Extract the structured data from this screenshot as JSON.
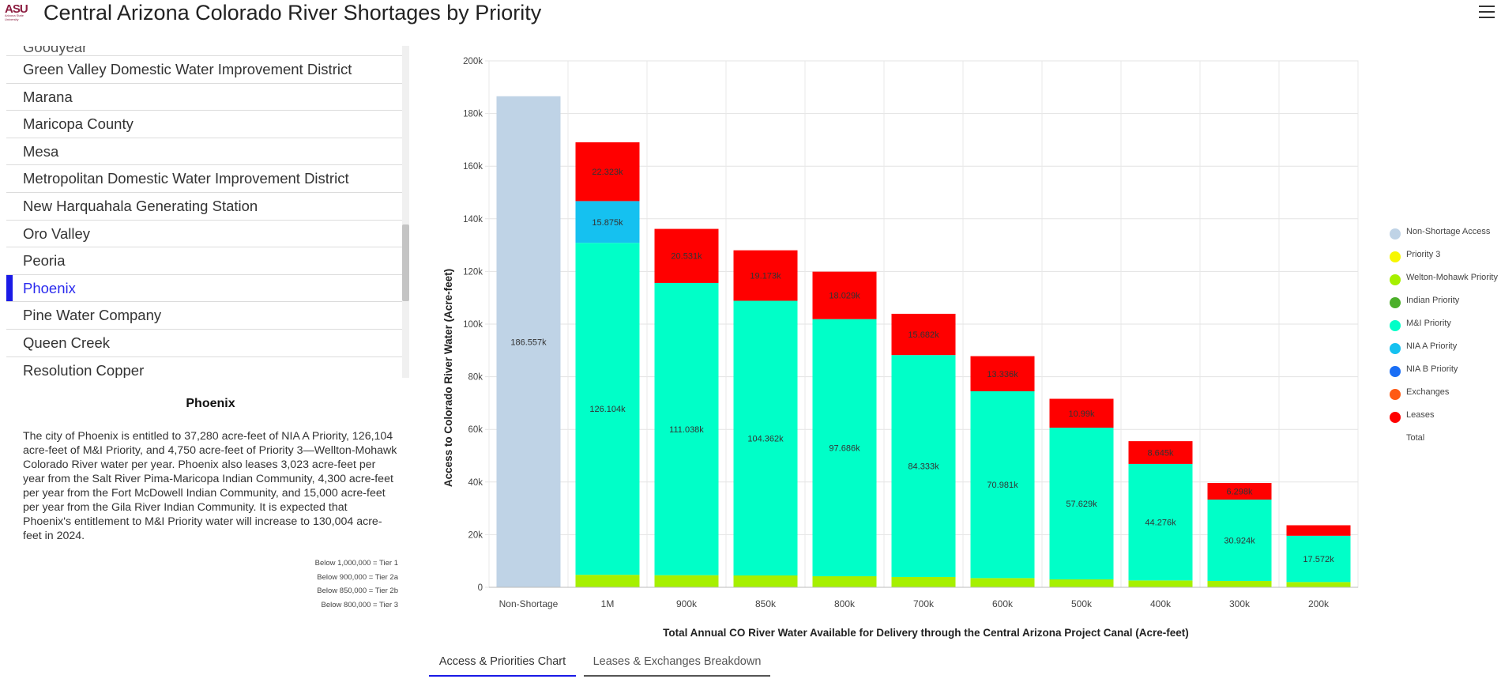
{
  "header": {
    "logo_text": "ASU",
    "logo_sub": "Arizona State University",
    "title": "Central Arizona Colorado River Shortages by Priority"
  },
  "list": {
    "partial_top": "Goodyear",
    "items": [
      "Green Valley Domestic Water Improvement District",
      "Marana",
      "Maricopa County",
      "Mesa",
      "Metropolitan Domestic Water Improvement District",
      "New Harquahala Generating Station",
      "Oro Valley",
      "Peoria",
      "Phoenix",
      "Pine Water Company",
      "Queen Creek",
      "Resolution Copper"
    ],
    "selected": "Phoenix"
  },
  "detail": {
    "title": "Phoenix",
    "text": "The city of Phoenix is entitled to 37,280 acre-feet of NIA A Priority, 126,104 acre-feet of M&I Priority, and 4,750 acre-feet of Priority 3—Wellton-Mohawk Colorado River water per year. Phoenix also leases 3,023 acre-feet per year from the Salt River Pima-Maricopa Indian Community, 4,300 acre-feet per year from the Fort McDowell Indian Community, and 15,000 acre-feet per year from the Gila River Indian Community. It is expected that Phoenix's entitlement to M&I Priority water will increase to 130,004 acre-feet in 2024.",
    "tiers": [
      "Below 1,000,000 = Tier 1",
      "Below 900,000 = Tier 2a",
      "Below 850,000 = Tier 2b",
      "Below 800,000 = Tier 3"
    ]
  },
  "tabs": {
    "chart": "Access & Priorities Chart",
    "leases": "Leases & Exchanges Breakdown"
  },
  "legend": [
    {
      "label": "Non-Shortage Access",
      "color": "#bfd3e6"
    },
    {
      "label": "Priority 3",
      "color": "#f7f700"
    },
    {
      "label": "Welton-Mohawk Priority",
      "color": "#a6f000"
    },
    {
      "label": "Indian Priority",
      "color": "#4caf2a"
    },
    {
      "label": "M&I Priority",
      "color": "#00ffc8"
    },
    {
      "label": "NIA A Priority",
      "color": "#15c1f0"
    },
    {
      "label": "NIA B Priority",
      "color": "#1a6ef5"
    },
    {
      "label": "Exchanges",
      "color": "#ff5a14"
    },
    {
      "label": "Leases",
      "color": "#ff0000"
    },
    {
      "label": "Total",
      "color": ""
    }
  ],
  "chart_data": {
    "type": "bar",
    "stacked": true,
    "xlabel": "Total Annual CO River Water Available for Delivery through the Central Arizona Project Canal (Acre-feet)",
    "ylabel": "Access to Colorado River Water (Acre-feet)",
    "ylim": [
      0,
      200000
    ],
    "yticks": [
      "0",
      "20k",
      "40k",
      "60k",
      "80k",
      "100k",
      "120k",
      "140k",
      "160k",
      "180k",
      "200k"
    ],
    "categories": [
      "Non-Shortage",
      "1M",
      "900k",
      "850k",
      "800k",
      "700k",
      "600k",
      "500k",
      "400k",
      "300k",
      "200k"
    ],
    "series": [
      {
        "name": "Non-Shortage Access",
        "color": "#bfd3e6",
        "values": [
          186557,
          0,
          0,
          0,
          0,
          0,
          0,
          0,
          0,
          0,
          0
        ],
        "labels": [
          "186.557k",
          "",
          "",
          "",
          "",
          "",
          "",
          "",
          "",
          "",
          ""
        ]
      },
      {
        "name": "Welton-Mohawk Priority",
        "color": "#a6f000",
        "values": [
          0,
          4750,
          4600,
          4500,
          4200,
          3900,
          3500,
          3000,
          2600,
          2400,
          2000
        ],
        "labels": [
          "",
          "",
          "",
          "",
          "",
          "",
          "",
          "",
          "",
          "",
          ""
        ]
      },
      {
        "name": "M&I Priority",
        "color": "#00ffc8",
        "values": [
          0,
          126104,
          111038,
          104362,
          97686,
          84333,
          70981,
          57629,
          44276,
          30924,
          17572
        ],
        "labels": [
          "",
          "126.104k",
          "111.038k",
          "104.362k",
          "97.686k",
          "84.333k",
          "70.981k",
          "57.629k",
          "44.276k",
          "30.924k",
          "17.572k"
        ]
      },
      {
        "name": "NIA A Priority",
        "color": "#15c1f0",
        "values": [
          0,
          15875,
          0,
          0,
          0,
          0,
          0,
          0,
          0,
          0,
          0
        ],
        "labels": [
          "",
          "15.875k",
          "",
          "",
          "",
          "",
          "",
          "",
          "",
          "",
          ""
        ]
      },
      {
        "name": "Leases",
        "color": "#ff0000",
        "values": [
          0,
          22323,
          20531,
          19173,
          18029,
          15682,
          13336,
          10990,
          8645,
          6298,
          4000
        ],
        "labels": [
          "",
          "22.323k",
          "20.531k",
          "19.173k",
          "18.029k",
          "15.682k",
          "13.336k",
          "10.99k",
          "8.645k",
          "6.298k",
          ""
        ]
      }
    ]
  }
}
